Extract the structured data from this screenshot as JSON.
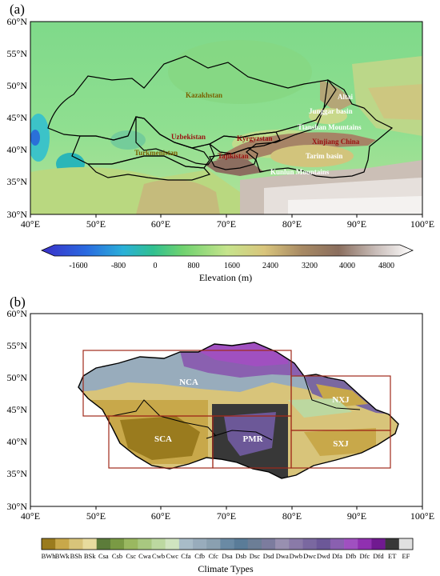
{
  "panel_a": {
    "label": "(a)",
    "x_ticks": [
      "40°E",
      "50°E",
      "60°E",
      "70°E",
      "80°E",
      "90°E",
      "100°E"
    ],
    "y_ticks": [
      "60°N",
      "55°N",
      "50°N",
      "45°N",
      "40°N",
      "35°N",
      "30°N"
    ],
    "place_labels": {
      "kazakhstan": "Kazakhstan",
      "altai": "Altai",
      "junggar": "Junggar basin",
      "tianshan": "Tianshan Mountains",
      "xinjiang": "Xinjiang China",
      "uzbekistan": "Uzbekistan",
      "kyrgyzstan": "Kyrgyzstan",
      "turkmenistan": "Turkmenistan",
      "tajikistan": "Tajikistan",
      "tarim": "Tarim basin",
      "kunlun": "Kunlun Mountains"
    },
    "colorbar": {
      "ticks": [
        "-1600",
        "-800",
        "0",
        "800",
        "1600",
        "2400",
        "3200",
        "4000",
        "4800"
      ],
      "title": "Elevation (m)"
    }
  },
  "panel_b": {
    "label": "(b)",
    "x_ticks": [
      "40°E",
      "50°E",
      "60°E",
      "70°E",
      "80°E",
      "90°E",
      "100°E"
    ],
    "y_ticks": [
      "60°N",
      "55°N",
      "50°N",
      "45°N",
      "40°N",
      "35°N",
      "30°N"
    ],
    "regions": {
      "nca": "NCA",
      "nxj": "NXJ",
      "sca": "SCA",
      "pmr": "PMR",
      "sxj": "SXJ"
    },
    "climate_types": [
      "BWh",
      "BWk",
      "BSh",
      "BSk",
      "Csa",
      "Csb",
      "Csc",
      "Cwa",
      "Cwb",
      "Cwc",
      "Cfa",
      "Cfb",
      "Cfc",
      "Dsa",
      "Dsb",
      "Dsc",
      "Dsd",
      "Dwa",
      "Dwb",
      "Dwc",
      "Dwd",
      "Dfa",
      "Dfb",
      "Dfc",
      "Dfd",
      "ET",
      "EF"
    ],
    "climate_colors": [
      "#9a7b1e",
      "#c8a84a",
      "#d8c47a",
      "#e8dc9e",
      "#5c7c3a",
      "#7a9a44",
      "#9ab860",
      "#a8c880",
      "#bcd8a0",
      "#d0e4c0",
      "#a8bcc8",
      "#98acbc",
      "#8aa0b0",
      "#6a8aa4",
      "#5a7c98",
      "#6c7e96",
      "#7c7c9e",
      "#9890b0",
      "#8a7aa8",
      "#7a68a0",
      "#6c5898",
      "#8a60b0",
      "#a050c0",
      "#9030b0",
      "#701a90",
      "#383838",
      "#e0e0e0"
    ],
    "colorbar_title": "Climate Types"
  }
}
